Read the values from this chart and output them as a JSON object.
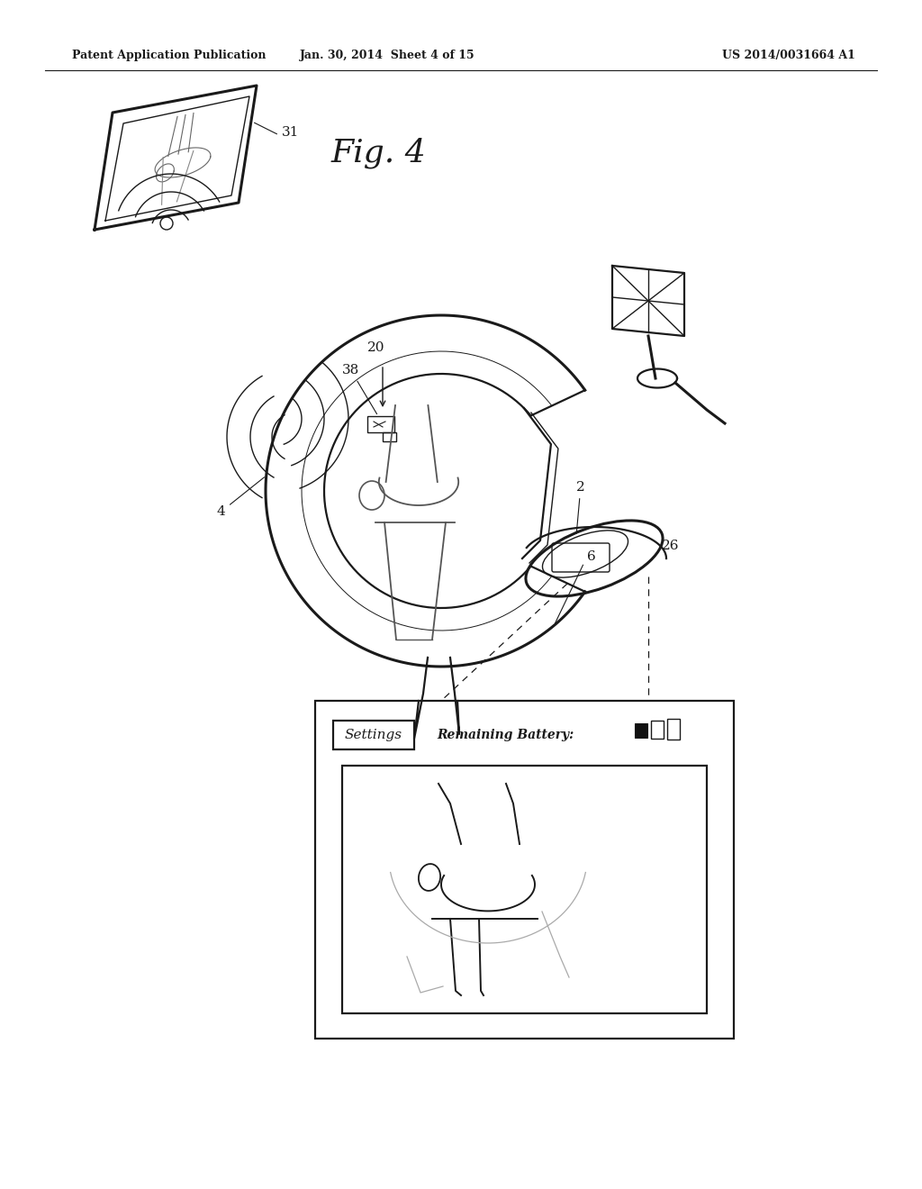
{
  "background_color": "#ffffff",
  "header_left": "Patent Application Publication",
  "header_mid": "Jan. 30, 2014  Sheet 4 of 15",
  "header_right": "US 2014/0031664 A1",
  "fig_label": "Fig. 4",
  "line_color": "#1a1a1a",
  "gray_color": "#888888",
  "light_gray": "#cccccc"
}
